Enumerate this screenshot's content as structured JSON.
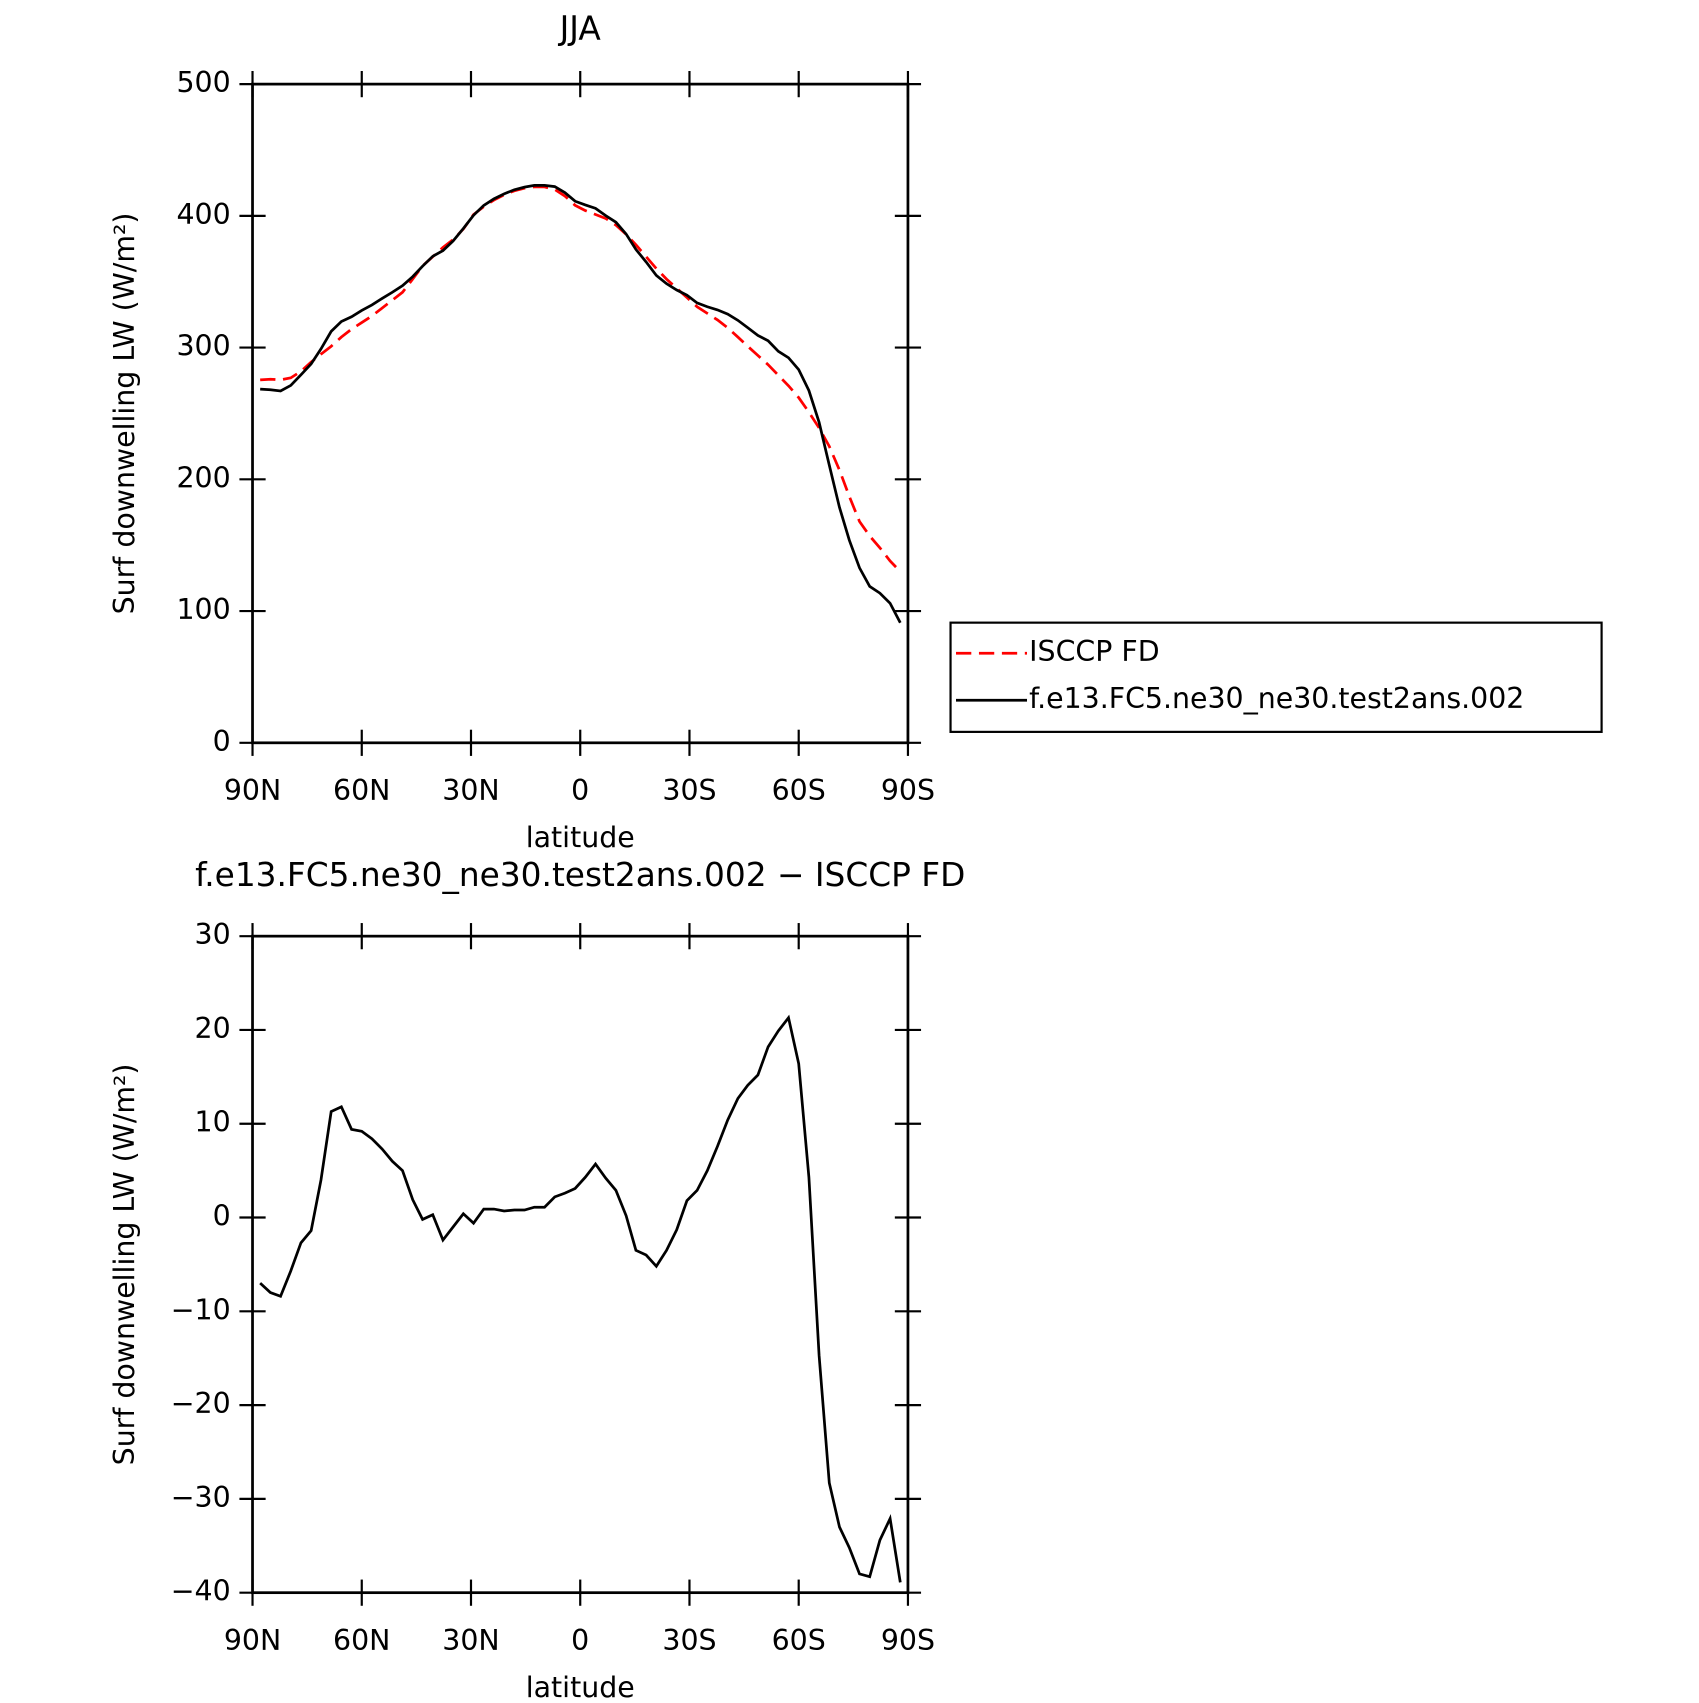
{
  "chart_data": [
    {
      "type": "line",
      "title": "JJA",
      "xlabel": "latitude",
      "ylabel": "Surf downwelling LW (W/m²)",
      "x": [
        87.9,
        85.1,
        82.3,
        79.5,
        76.7,
        73.9,
        71.2,
        68.4,
        65.6,
        62.8,
        60.0,
        57.2,
        54.4,
        51.6,
        48.8,
        46.0,
        43.3,
        40.5,
        37.7,
        34.9,
        32.1,
        29.3,
        26.5,
        23.7,
        20.9,
        18.1,
        15.3,
        12.6,
        9.8,
        7.0,
        4.2,
        1.4,
        -1.4,
        -4.2,
        -7.0,
        -9.8,
        -12.6,
        -15.3,
        -18.1,
        -20.9,
        -23.7,
        -26.5,
        -29.3,
        -32.1,
        -34.9,
        -37.7,
        -40.5,
        -43.3,
        -46.0,
        -48.8,
        -51.6,
        -54.4,
        -57.2,
        -60.0,
        -62.8,
        -65.6,
        -68.4,
        -71.2,
        -73.9,
        -76.7,
        -79.5,
        -82.3,
        -85.1,
        -87.9
      ],
      "series": [
        {
          "name": "ISCCP FD",
          "color": "#ff0000",
          "line_style": "dashed",
          "values": [
            275.5,
            276,
            275.5,
            277,
            282,
            289,
            295,
            301,
            308,
            314,
            319,
            324,
            330,
            336,
            342,
            352,
            362,
            369,
            376,
            382,
            390,
            401,
            407,
            412,
            416,
            419,
            421,
            422,
            422,
            420,
            415,
            408,
            404,
            401,
            398,
            393,
            386,
            378,
            369,
            360,
            352,
            345,
            338,
            331,
            326,
            321,
            315,
            308,
            301,
            294,
            287,
            279,
            271,
            262,
            251,
            239,
            225,
            207,
            187,
            168,
            157,
            148,
            138,
            130
          ]
        },
        {
          "name": "f.e13.FC5.ne30_ne30.test2ans.002",
          "color": "#000000",
          "line_style": "solid",
          "values": [
            268.5,
            268,
            267.1,
            271.3,
            279.3,
            287.6,
            299,
            312.3,
            319.8,
            323.4,
            328.2,
            332.4,
            337.3,
            342,
            347,
            353.9,
            361.8,
            369.3,
            373.6,
            381,
            390.4,
            400.4,
            407.9,
            412.9,
            416.7,
            419.8,
            421.8,
            423.1,
            423.1,
            422.2,
            417.6,
            411.1,
            408.3,
            405.7,
            400.2,
            395.2,
            386.2,
            374.5,
            365,
            354.8,
            348.5,
            343.7,
            339.8,
            333.9,
            331,
            328.6,
            325.4,
            320.7,
            315.1,
            309.2,
            305.2,
            297.2,
            292.3,
            283.3,
            267.4,
            243.3,
            210.7,
            178.7,
            153.8,
            132.8,
            118.7,
            113.6,
            105.9,
            91.1
          ]
        }
      ],
      "xlim": [
        90,
        -90
      ],
      "xticks": [
        {
          "value": 90,
          "label": "90N"
        },
        {
          "value": 60,
          "label": "60N"
        },
        {
          "value": 30,
          "label": "30N"
        },
        0,
        {
          "value": -30,
          "label": "30S"
        },
        {
          "value": -60,
          "label": "60S"
        },
        {
          "value": -90,
          "label": "90S"
        }
      ],
      "ylim": [
        0,
        500
      ],
      "yticks": [
        0,
        100,
        200,
        300,
        400,
        500
      ],
      "legend": "right"
    },
    {
      "type": "line",
      "title": "f.e13.FC5.ne30_ne30.test2ans.002 − ISCCP FD",
      "xlabel": "latitude",
      "ylabel": "Surf downwelling LW (W/m²)",
      "x": [
        87.9,
        85.1,
        82.3,
        79.5,
        76.7,
        73.9,
        71.2,
        68.4,
        65.6,
        62.8,
        60.0,
        57.2,
        54.4,
        51.6,
        48.8,
        46.0,
        43.3,
        40.5,
        37.7,
        34.9,
        32.1,
        29.3,
        26.5,
        23.7,
        20.9,
        18.1,
        15.3,
        12.6,
        9.8,
        7.0,
        4.2,
        1.4,
        -1.4,
        -4.2,
        -7.0,
        -9.8,
        -12.6,
        -15.3,
        -18.1,
        -20.9,
        -23.7,
        -26.5,
        -29.3,
        -32.1,
        -34.9,
        -37.7,
        -40.5,
        -43.3,
        -46.0,
        -48.8,
        -51.6,
        -54.4,
        -57.2,
        -60.0,
        -62.8,
        -65.6,
        -68.4,
        -71.2,
        -73.9,
        -76.7,
        -79.5,
        -82.3,
        -85.1,
        -87.9
      ],
      "values": [
        -7,
        -8,
        -8.4,
        -5.7,
        -2.7,
        -1.4,
        4,
        11.3,
        11.8,
        9.4,
        9.2,
        8.4,
        7.3,
        6,
        5,
        1.9,
        -0.2,
        0.3,
        -2.4,
        -1,
        0.4,
        -0.6,
        0.9,
        0.9,
        0.7,
        0.8,
        0.8,
        1.1,
        1.1,
        2.2,
        2.6,
        3.1,
        4.3,
        5.7,
        4.2,
        2.9,
        0.2,
        -3.5,
        -4,
        -5.2,
        -3.5,
        -1.3,
        1.8,
        2.9,
        5,
        7.6,
        10.4,
        12.7,
        14.1,
        15.2,
        18.2,
        19.9,
        21.3,
        16.4,
        4.3,
        -14.7,
        -28.3,
        -33,
        -35.2,
        -38,
        -38.3,
        -34.4,
        -32.1,
        -38.9
      ],
      "color": "#000000",
      "xlim": [
        90,
        -90
      ],
      "xticks": [
        {
          "value": 90,
          "label": "90N"
        },
        {
          "value": 60,
          "label": "60N"
        },
        {
          "value": 30,
          "label": "30N"
        },
        0,
        {
          "value": -30,
          "label": "30S"
        },
        {
          "value": -60,
          "label": "60S"
        },
        {
          "value": -90,
          "label": "90S"
        }
      ],
      "ylim": [
        -40,
        30
      ],
      "yticks": [
        {
          "value": -40,
          "label": "−40"
        },
        {
          "value": -30,
          "label": "−30"
        },
        {
          "value": -20,
          "label": "−20"
        },
        {
          "value": -10,
          "label": "−10"
        },
        0,
        10,
        20,
        30
      ]
    }
  ]
}
